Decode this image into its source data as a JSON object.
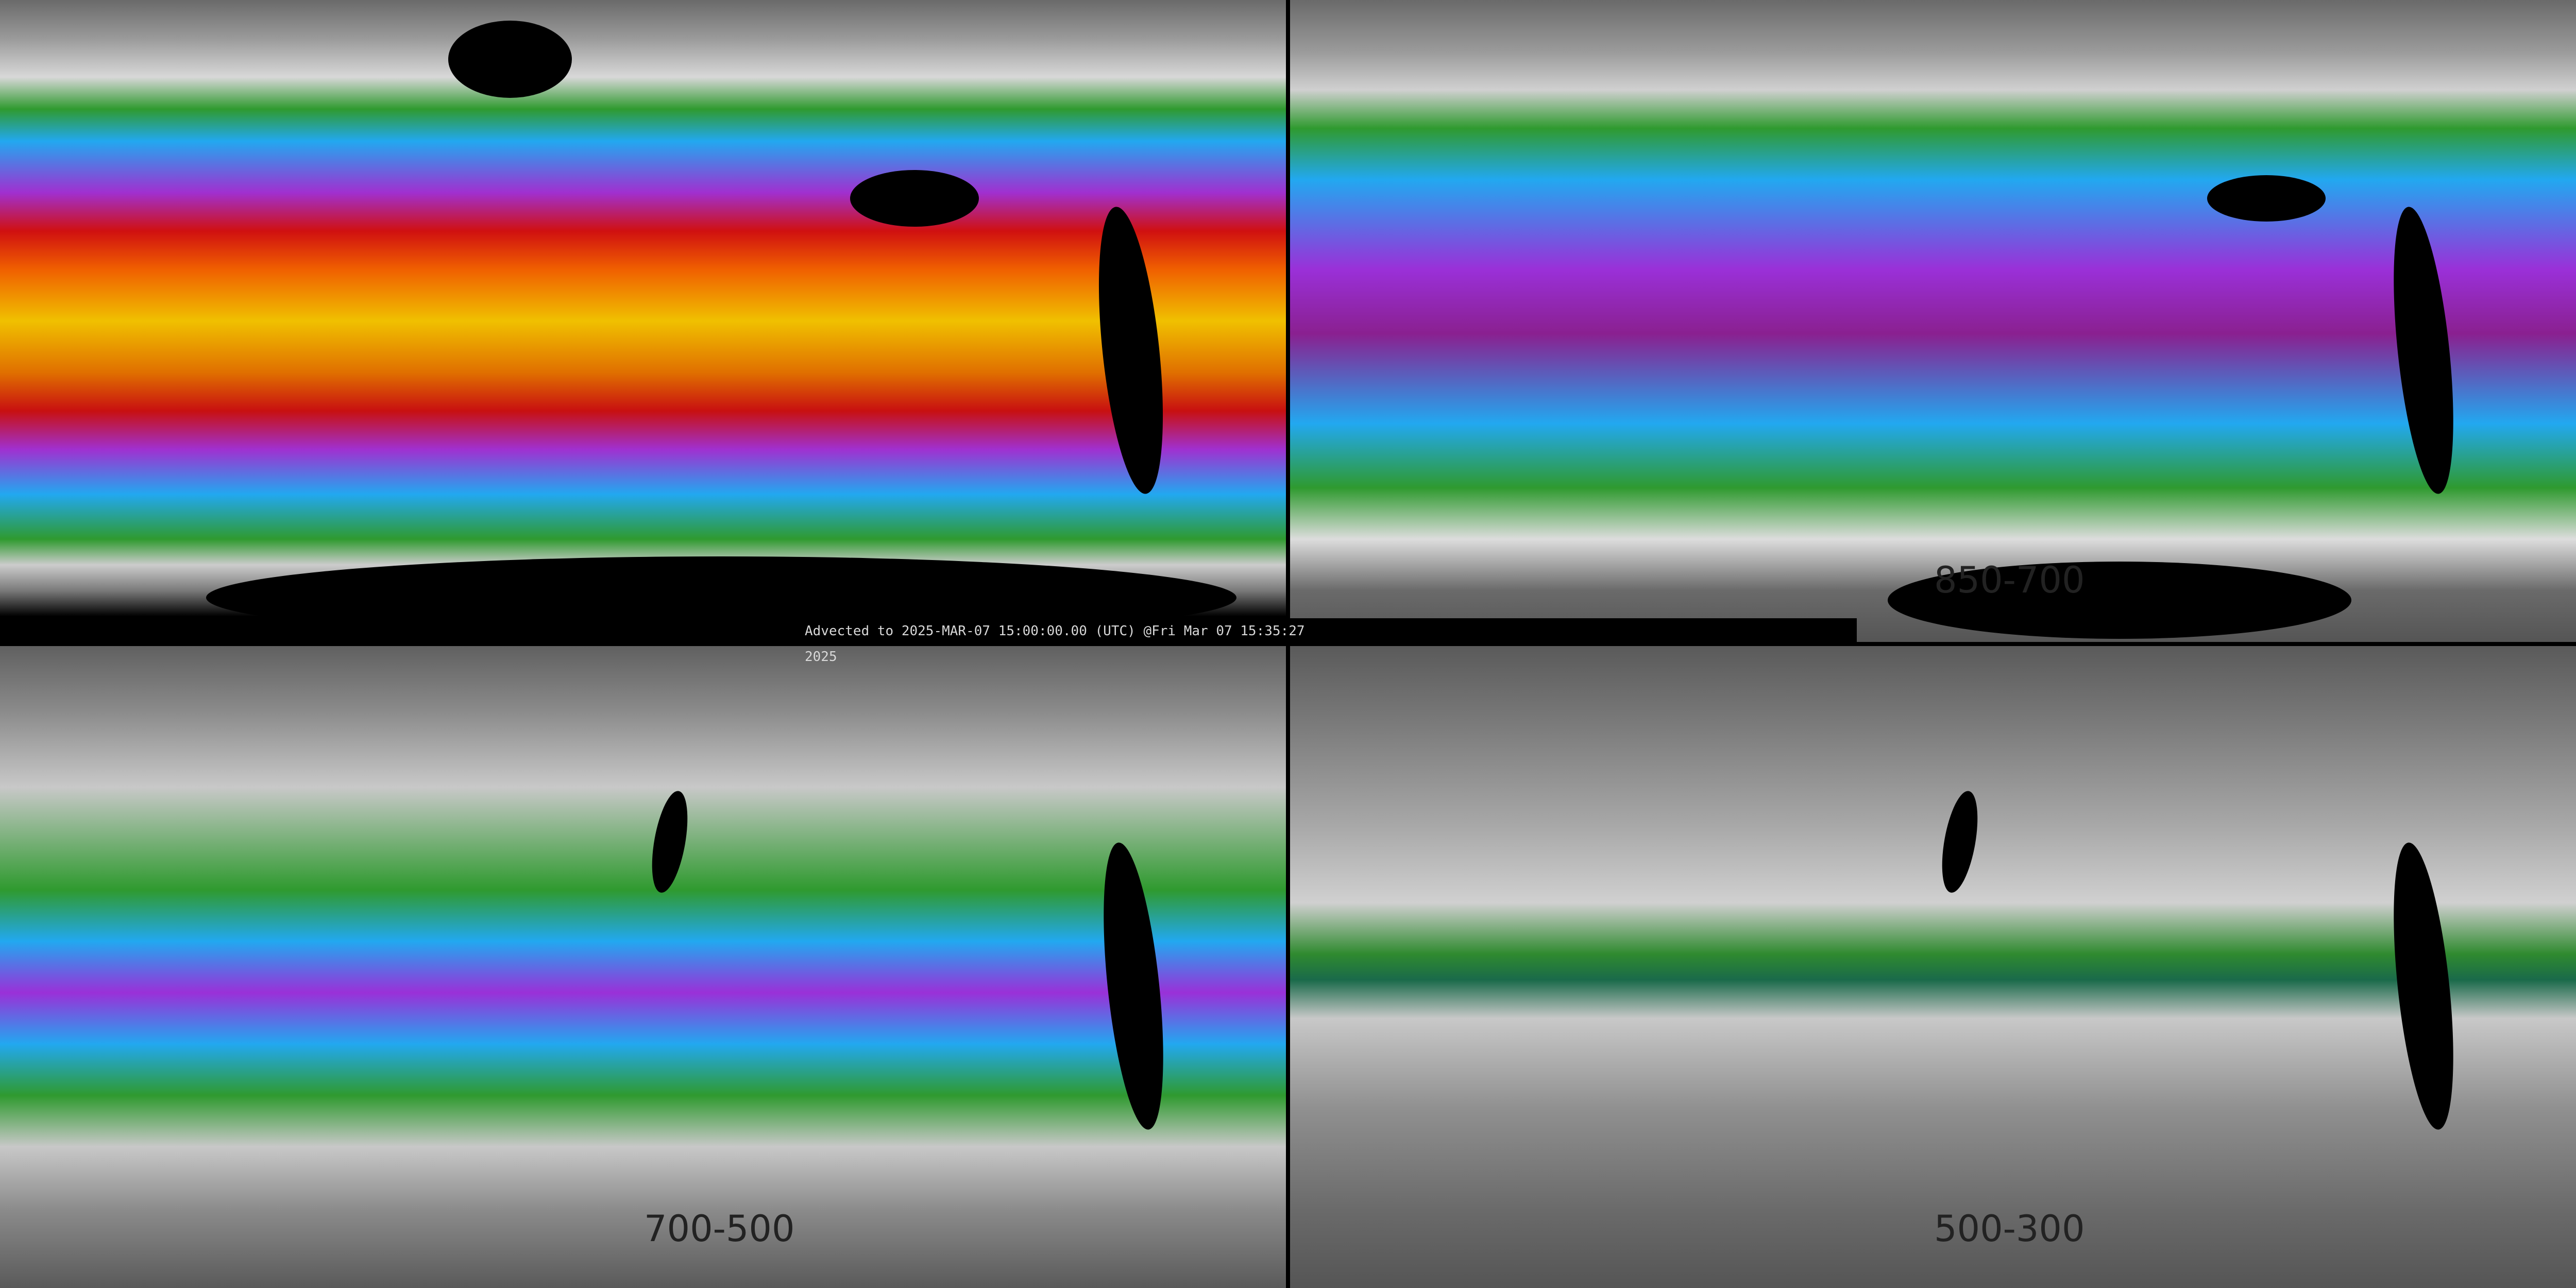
{
  "timestamp": "Advected to 2025-MAR-07 15:00:00.00 (UTC) @Fri Mar 07 15:35:27 2025",
  "panels": [
    {
      "label": ""
    },
    {
      "label": "850-700"
    },
    {
      "label": "700-500"
    },
    {
      "label": "500-300"
    }
  ],
  "colors": {
    "green": "#2f9a2f",
    "blue": "#22a8f0",
    "purple": "#a030d0",
    "red": "#d01010",
    "orange": "#f06000",
    "yellow": "#f0c000"
  }
}
